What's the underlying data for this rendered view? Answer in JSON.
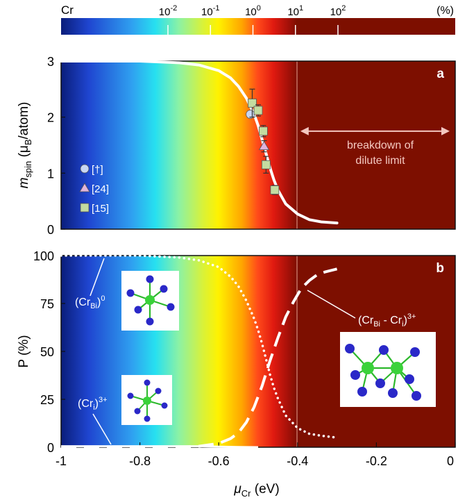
{
  "colorbar": {
    "label": "Cr",
    "unit": "(%)",
    "ticks": [
      {
        "base": "10",
        "exp": "-2",
        "value": 0.01
      },
      {
        "base": "10",
        "exp": "-1",
        "value": 0.1
      },
      {
        "base": "10",
        "exp": "0",
        "value": 1
      },
      {
        "base": "10",
        "exp": "1",
        "value": 10
      },
      {
        "base": "10",
        "exp": "2",
        "value": 100
      }
    ],
    "stops": [
      {
        "mu": -1.0,
        "color": "#0a1d7a"
      },
      {
        "mu": -0.93,
        "color": "#1f45d0"
      },
      {
        "mu": -0.82,
        "color": "#2fa0f0"
      },
      {
        "mu": -0.76,
        "color": "#27e0f0"
      },
      {
        "mu": -0.7,
        "color": "#8cf2a4"
      },
      {
        "mu": -0.64,
        "color": "#d8f23a"
      },
      {
        "mu": -0.6,
        "color": "#fff200"
      },
      {
        "mu": -0.54,
        "color": "#ffa500"
      },
      {
        "mu": -0.5,
        "color": "#ff4a1a"
      },
      {
        "mu": -0.46,
        "color": "#e01a10"
      },
      {
        "mu": -0.42,
        "color": "#a01008"
      },
      {
        "mu": -0.4,
        "color": "#7d0f00"
      }
    ],
    "saturated_color": "#7d0f00"
  },
  "chart_data": [
    {
      "type": "line",
      "panel_label": "a",
      "ylabel": {
        "base": "m",
        "sub": "spin",
        "rest": " (μ",
        "sub2": "B",
        "tail": "/atom)"
      },
      "ylim": [
        0,
        3
      ],
      "yticks": [
        0,
        1,
        2,
        3
      ],
      "xlim": [
        -1,
        0
      ],
      "curve": {
        "x": [
          -1.0,
          -0.8,
          -0.7,
          -0.65,
          -0.6,
          -0.57,
          -0.55,
          -0.53,
          -0.51,
          -0.5,
          -0.49,
          -0.48,
          -0.47,
          -0.46,
          -0.45,
          -0.43,
          -0.4,
          -0.37,
          -0.34,
          -0.3
        ],
        "y": [
          3.0,
          3.0,
          2.97,
          2.93,
          2.83,
          2.7,
          2.55,
          2.34,
          2.05,
          1.85,
          1.6,
          1.35,
          1.1,
          0.88,
          0.7,
          0.45,
          0.27,
          0.17,
          0.13,
          0.11
        ]
      },
      "points": [
        {
          "series": "[†]",
          "x": -0.52,
          "y": 2.05,
          "err": 0
        },
        {
          "series": "[24]",
          "x": -0.485,
          "y": 1.48,
          "err": 0.1
        },
        {
          "series": "[15]",
          "x": -0.515,
          "y": 2.25,
          "err": 0.25
        },
        {
          "series": "[15]",
          "x": -0.5,
          "y": 2.12,
          "err": 0.1
        },
        {
          "series": "[15]",
          "x": -0.487,
          "y": 1.75,
          "err": 0.1
        },
        {
          "series": "[15]",
          "x": -0.48,
          "y": 1.15,
          "err": 0.15
        },
        {
          "series": "[15]",
          "x": -0.458,
          "y": 0.7,
          "err": 0.08
        }
      ],
      "legend": [
        {
          "label": "[†]",
          "marker": "circle",
          "color": "#c8d6f4"
        },
        {
          "label": "[24]",
          "marker": "triangle",
          "color": "#e0b4dc"
        },
        {
          "label": "[15]",
          "marker": "square",
          "color": "#c4dca0"
        }
      ],
      "annotation": {
        "lines": [
          "breakdown of",
          "dilute limit"
        ],
        "arrow_x": [
          -0.4,
          0.0
        ],
        "arrow_y": 1.75
      }
    },
    {
      "type": "line",
      "panel_label": "b",
      "ylabel": "P (%)",
      "ylim": [
        0,
        100
      ],
      "yticks": [
        0,
        25,
        50,
        75,
        100
      ],
      "xlim": [
        -1,
        0
      ],
      "xticks": [
        -1,
        -0.8,
        -0.6,
        -0.4,
        -0.2,
        0
      ],
      "xtick_labels": [
        "-1",
        "-0.8",
        "-0.6",
        "-0.4",
        "-0.2",
        "0"
      ],
      "xlabel": {
        "base": "μ",
        "sub": "Cr",
        "rest": " (eV)"
      },
      "series": [
        {
          "name": "(Cr_Bi)0",
          "style": "dotted",
          "x": [
            -1.0,
            -0.8,
            -0.7,
            -0.65,
            -0.6,
            -0.57,
            -0.55,
            -0.53,
            -0.51,
            -0.5,
            -0.49,
            -0.48,
            -0.47,
            -0.46,
            -0.45,
            -0.43,
            -0.4,
            -0.37,
            -0.34,
            -0.3
          ],
          "y": [
            100,
            100,
            99,
            97.5,
            94,
            89,
            84,
            76.5,
            67,
            61,
            54,
            46,
            38,
            31,
            25.5,
            16.5,
            10,
            7,
            6,
            5
          ]
        },
        {
          "name": "(Cr_Bi - Cr_i)3+",
          "style": "dashed",
          "x": [
            -1.0,
            -0.7,
            -0.65,
            -0.6,
            -0.57,
            -0.55,
            -0.53,
            -0.51,
            -0.49,
            -0.47,
            -0.45,
            -0.43,
            -0.41,
            -0.39,
            -0.37,
            -0.35,
            -0.33,
            -0.3
          ],
          "y": [
            0,
            0,
            0.5,
            2,
            4.5,
            7.5,
            13,
            21,
            32,
            45,
            57,
            68,
            76,
            83,
            87,
            90,
            91.5,
            93
          ]
        },
        {
          "name": "(Cr_i)3+",
          "style": "solid",
          "x": [
            -1.0,
            -0.65,
            -0.6,
            -0.55,
            -0.5
          ],
          "y": [
            0.5,
            0.5,
            0.3,
            0.1,
            0.0
          ]
        }
      ],
      "labels": [
        {
          "base": "(Cr",
          "sub": "Bi",
          "rest": ")",
          "sup": "0"
        },
        {
          "base": "(Cr",
          "sub": "i",
          "rest": ")",
          "sup": "3+"
        },
        {
          "base": "(Cr",
          "sub": "Bi",
          "mid": " - Cr",
          "sub2": "i",
          "rest": ")",
          "sup": "3+"
        }
      ]
    }
  ]
}
